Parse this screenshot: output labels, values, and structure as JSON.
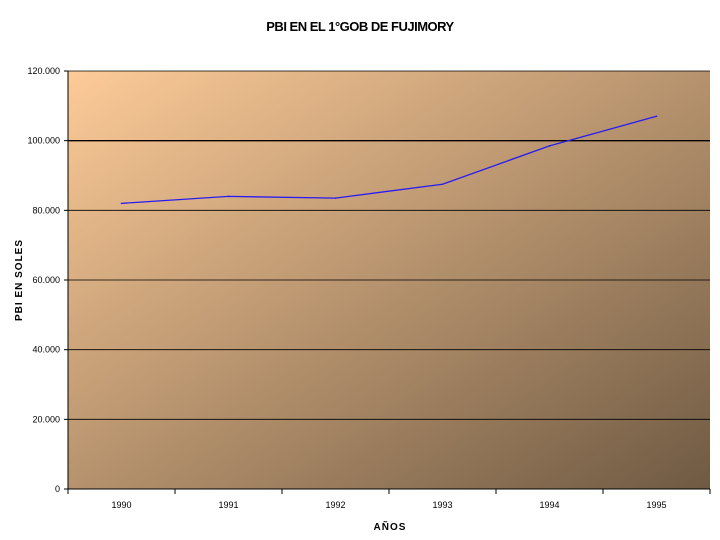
{
  "chart_data": {
    "type": "line",
    "title": "PBI EN EL 1°GOB DE FUJIMORY",
    "xlabel": "AÑOS",
    "ylabel": "PBI EN SOLES",
    "categories": [
      "1990",
      "1991",
      "1992",
      "1993",
      "1994",
      "1995"
    ],
    "series": [
      {
        "values": [
          82000,
          84000,
          83500,
          87500,
          98500,
          107000
        ],
        "color": "#2a1cf0"
      }
    ],
    "ylim": [
      0,
      120000
    ],
    "yticks": [
      0,
      20000,
      40000,
      60000,
      80000,
      100000,
      120000
    ],
    "ytick_labels": [
      "0",
      "20.000",
      "40.000",
      "60.000",
      "80.000",
      "100.000",
      "120.000"
    ],
    "grid": true,
    "legend": "none",
    "colors": {
      "plot_gradient_start": "#fdcb98",
      "plot_gradient_end": "#6f5a43",
      "gridline": "#000000"
    }
  }
}
